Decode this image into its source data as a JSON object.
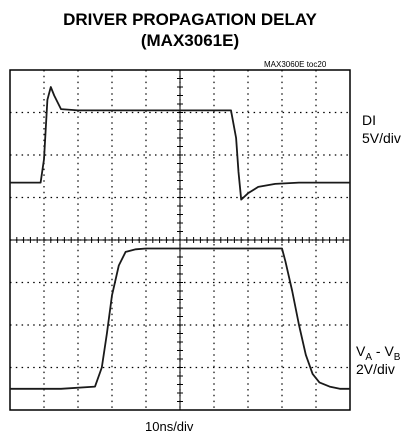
{
  "chart_data": {
    "type": "line",
    "title_line1": "DRIVER PROPAGATION DELAY",
    "title_line2": "(MAX3061E)",
    "toc_label": "MAX3060E toc20",
    "x_units": "10ns/div",
    "divisions": {
      "x": 10,
      "y": 8
    },
    "series": [
      {
        "name": "DI",
        "scale": "5V/div",
        "x": [
          0.0,
          0.9,
          1.0,
          1.05,
          1.1,
          1.2,
          1.3,
          1.5,
          2.0,
          3.0,
          4.0,
          5.0,
          5.8,
          6.5,
          6.65,
          6.72,
          6.8,
          7.0,
          7.3,
          7.8,
          8.5,
          9.2,
          10.0
        ],
        "y": [
          1.35,
          1.35,
          1.9,
          2.6,
          3.3,
          3.6,
          3.4,
          3.08,
          3.05,
          3.05,
          3.05,
          3.05,
          3.05,
          3.05,
          2.4,
          1.6,
          0.95,
          1.1,
          1.25,
          1.32,
          1.35,
          1.35,
          1.35
        ]
      },
      {
        "name": "V_A - V_B",
        "scale": "2V/div",
        "x": [
          0.0,
          1.5,
          2.5,
          2.7,
          2.85,
          3.0,
          3.2,
          3.4,
          3.7,
          4.0,
          5.0,
          6.0,
          7.0,
          8.0,
          8.1,
          8.3,
          8.5,
          8.7,
          8.9,
          9.1,
          9.4,
          9.7,
          10.0
        ],
        "y": [
          -3.5,
          -3.5,
          -3.45,
          -3.0,
          -2.2,
          -1.3,
          -0.6,
          -0.28,
          -0.22,
          -0.2,
          -0.2,
          -0.2,
          -0.2,
          -0.2,
          -0.5,
          -1.2,
          -2.0,
          -2.7,
          -3.15,
          -3.35,
          -3.45,
          -3.5,
          -3.5
        ]
      }
    ],
    "grid": "dotted",
    "trace_color": "#1a1a1a"
  },
  "labels": {
    "di_name": "DI",
    "di_scale": "5V/div",
    "va": "V",
    "sub_a": "A",
    "dash": " - V",
    "sub_b": "B",
    "vab_scale": "2V/div"
  }
}
